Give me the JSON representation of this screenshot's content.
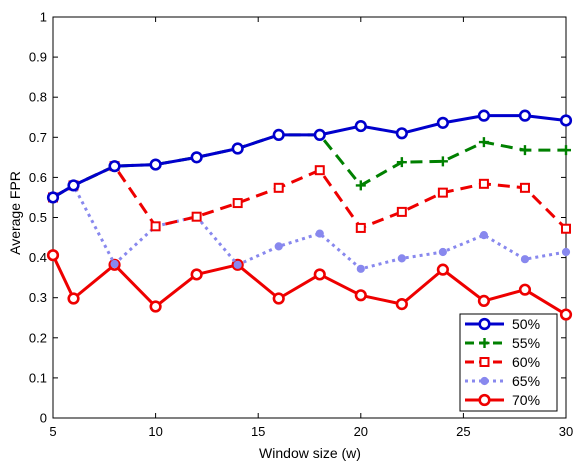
{
  "chart_data": {
    "type": "line",
    "xlabel": "Window size (w)",
    "ylabel": "Average FPR",
    "xlim": [
      5,
      30
    ],
    "ylim": [
      0,
      1
    ],
    "x_ticks": [
      "5",
      "10",
      "15",
      "20",
      "25",
      "30"
    ],
    "y_ticks": [
      "0",
      "0.1",
      "0.2",
      "0.3",
      "0.4",
      "0.5",
      "0.6",
      "0.7",
      "0.8",
      "0.9",
      "1"
    ],
    "grid": false,
    "legend_position": "bottom-right",
    "x": [
      5,
      6,
      8,
      10,
      12,
      14,
      16,
      18,
      20,
      22,
      24,
      26,
      28,
      30
    ],
    "series": [
      {
        "name": "50%",
        "color": "#0000cc",
        "line_style": "solid",
        "marker": "circle",
        "values": [
          0.55,
          0.58,
          0.628,
          0.632,
          0.65,
          0.672,
          0.706,
          0.706,
          0.728,
          0.71,
          0.736,
          0.754,
          0.754,
          0.742
        ]
      },
      {
        "name": "55%",
        "color": "#008000",
        "line_style": "dashed",
        "marker": "plus",
        "values": [
          0.55,
          0.58,
          0.628,
          0.632,
          0.65,
          0.672,
          0.706,
          0.706,
          0.58,
          0.638,
          0.64,
          0.688,
          0.668,
          0.668
        ]
      },
      {
        "name": "60%",
        "color": "#ee0000",
        "line_style": "dashed",
        "marker": "square",
        "values": [
          0.55,
          0.58,
          0.628,
          0.478,
          0.502,
          0.536,
          0.574,
          0.618,
          0.474,
          0.514,
          0.562,
          0.584,
          0.574,
          0.472
        ]
      },
      {
        "name": "65%",
        "color": "#8888ee",
        "line_style": "dotted",
        "marker": "dot",
        "values": [
          0.55,
          0.58,
          0.384,
          0.478,
          0.502,
          0.382,
          0.428,
          0.46,
          0.372,
          0.398,
          0.414,
          0.456,
          0.396,
          0.414
        ]
      },
      {
        "name": "70%",
        "color": "#ee0000",
        "line_style": "solid",
        "marker": "circle",
        "values": [
          0.406,
          0.298,
          0.382,
          0.278,
          0.358,
          0.382,
          0.298,
          0.358,
          0.306,
          0.284,
          0.37,
          0.292,
          0.32,
          0.258
        ]
      }
    ]
  }
}
